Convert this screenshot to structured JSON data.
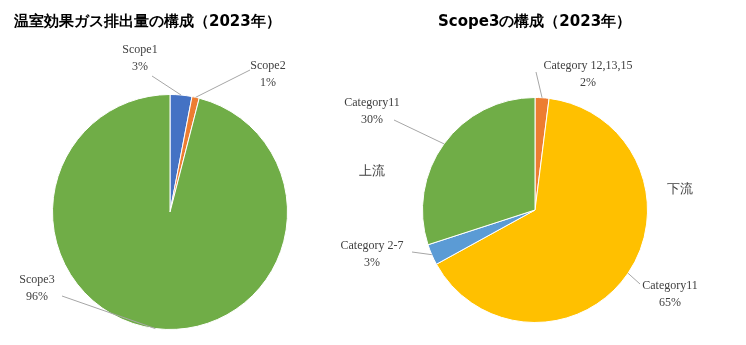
{
  "chart_data": [
    {
      "type": "pie",
      "title": "温室効果ガス排出量の構成（2023年）",
      "categories": [
        "Scope1",
        "Scope2",
        "Scope3"
      ],
      "values": [
        3,
        1,
        96
      ],
      "value_labels": [
        "3%",
        "1%",
        "96%"
      ],
      "colors": [
        "#4472c4",
        "#ed7d31",
        "#70ad47"
      ],
      "data_labels": true
    },
    {
      "type": "pie",
      "title": "Scope3の構成（2023年）",
      "categories": [
        "Category 12,13,15",
        "Category11",
        "Category 2-7",
        "Category11"
      ],
      "values": [
        2,
        65,
        3,
        30
      ],
      "value_labels": [
        "2%",
        "65%",
        "3%",
        "30%"
      ],
      "colors": [
        "#ed7d31",
        "#ffc000",
        "#5b9bd5",
        "#70ad47"
      ],
      "data_labels": true,
      "annotations": [
        "上流",
        "下流"
      ]
    }
  ]
}
